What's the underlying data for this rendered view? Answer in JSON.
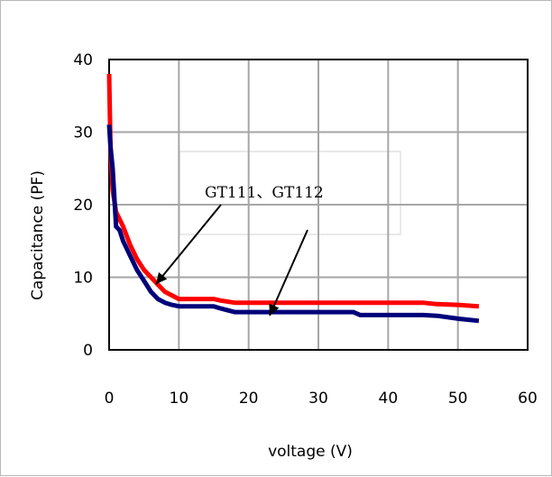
{
  "chart_data": {
    "type": "line",
    "xlabel": "voltage (V)",
    "ylabel": "Capacitance (PF)",
    "xlim": [
      0,
      60
    ],
    "ylim": [
      0,
      40
    ],
    "xticks": [
      "0",
      "10",
      "20",
      "30",
      "40",
      "50",
      "60"
    ],
    "yticks": [
      "0",
      "10",
      "20",
      "30",
      "40"
    ],
    "grid": true,
    "annotation": "GT111、GT112",
    "series": [
      {
        "color": "#ff0000",
        "x": [
          0,
          0.2,
          0.5,
          1,
          1.5,
          2,
          3,
          4,
          5,
          6,
          7,
          8,
          9,
          10,
          12,
          15,
          16,
          18,
          20,
          25,
          30,
          35,
          40,
          45,
          47,
          50,
          53
        ],
        "y": [
          38,
          28,
          22,
          19,
          18,
          17,
          14.5,
          12.5,
          11,
          10,
          9,
          8,
          7.5,
          7,
          7,
          7,
          6.8,
          6.5,
          6.5,
          6.5,
          6.5,
          6.5,
          6.5,
          6.5,
          6.3,
          6.2,
          6
        ]
      },
      {
        "color": "#00007a",
        "x": [
          0,
          0.2,
          0.5,
          1,
          1.5,
          2,
          3,
          4,
          5,
          6,
          7,
          8,
          9,
          10,
          12,
          15,
          16,
          18,
          20,
          25,
          30,
          35,
          36,
          40,
          45,
          47,
          50,
          53
        ],
        "y": [
          31,
          28,
          25,
          17,
          16.5,
          15,
          13,
          11,
          9.5,
          8,
          7,
          6.5,
          6.2,
          6,
          6,
          6,
          5.7,
          5.2,
          5.2,
          5.2,
          5.2,
          5.2,
          4.8,
          4.8,
          4.8,
          4.7,
          4.3,
          4
        ]
      }
    ]
  }
}
